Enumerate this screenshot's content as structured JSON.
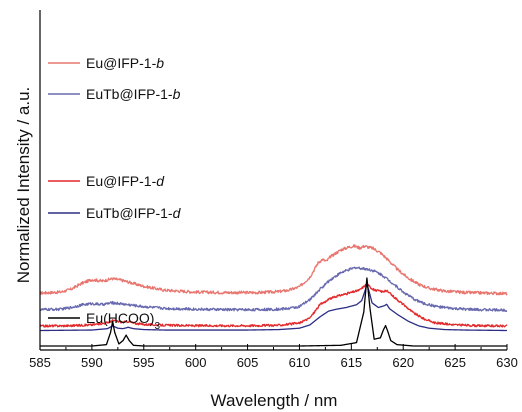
{
  "chart_data": {
    "type": "line",
    "title": "",
    "xlabel": "Wavelength / nm",
    "ylabel": "Normalized Intensity / a.u.",
    "xlim": [
      585,
      630
    ],
    "x_ticks": [
      585,
      590,
      595,
      600,
      605,
      610,
      615,
      620,
      625,
      630
    ],
    "y_tick_labels_shown": false,
    "grid": false,
    "legend_position": "left, beside each trace",
    "series": [
      {
        "name": "Eu@IFP-1-b",
        "name_parts": [
          "Eu@IFP-1-",
          "b"
        ],
        "color": "#e8766f",
        "offset": 5.2,
        "scale": 4.8,
        "noise": 0.03,
        "x": [
          585,
          587,
          588,
          589,
          590,
          591,
          592,
          593,
          594,
          595,
          597,
          600,
          603,
          606,
          608,
          609,
          610,
          611,
          611.8,
          612.2,
          612.6,
          613,
          614,
          614.8,
          615.3,
          615.8,
          616.3,
          616.7,
          617.1,
          617.8,
          618.5,
          619.5,
          620.5,
          621.5,
          622.5,
          624,
          626,
          628,
          630
        ],
        "values": [
          0.02,
          0.04,
          0.1,
          0.22,
          0.3,
          0.27,
          0.32,
          0.28,
          0.22,
          0.16,
          0.08,
          0.04,
          0.03,
          0.03,
          0.05,
          0.08,
          0.15,
          0.35,
          0.65,
          0.72,
          0.68,
          0.78,
          0.92,
          0.98,
          1.0,
          0.96,
          1.0,
          0.97,
          0.95,
          0.86,
          0.72,
          0.5,
          0.33,
          0.2,
          0.12,
          0.06,
          0.03,
          0.02,
          0.01
        ]
      },
      {
        "name": "EuTb@IFP-1-b",
        "name_parts": [
          "EuTb@IFP-1-",
          "b"
        ],
        "color": "#6869ae",
        "offset": 3.55,
        "scale": 4.3,
        "noise": 0.03,
        "x": [
          585,
          587,
          588,
          589,
          590,
          591,
          592,
          593,
          594,
          595,
          597,
          600,
          603,
          606,
          608,
          609,
          610,
          611,
          612,
          613,
          614,
          614.8,
          615.4,
          616,
          616.6,
          617.2,
          618,
          619,
          620,
          621,
          622,
          623.5,
          625,
          627,
          630
        ],
        "values": [
          0.02,
          0.03,
          0.07,
          0.13,
          0.16,
          0.14,
          0.18,
          0.15,
          0.12,
          0.09,
          0.05,
          0.03,
          0.02,
          0.02,
          0.03,
          0.05,
          0.09,
          0.25,
          0.5,
          0.72,
          0.88,
          0.95,
          1.0,
          0.98,
          0.96,
          0.92,
          0.82,
          0.63,
          0.43,
          0.27,
          0.16,
          0.08,
          0.04,
          0.02,
          0.01
        ]
      },
      {
        "name": "Eu@IFP-1-d",
        "name_parts": [
          "Eu@IFP-1-",
          "d"
        ],
        "color": "#e22a2c",
        "offset": 1.95,
        "scale": 4.25,
        "noise": 0.025,
        "x": [
          585,
          588,
          590,
          591.5,
          592,
          592.5,
          593,
          593.5,
          594,
          595,
          597,
          600,
          605,
          608,
          610,
          611,
          612,
          612.6,
          613,
          614,
          615,
          615.8,
          616.2,
          616.5,
          616.8,
          617.2,
          618,
          618.4,
          619,
          620,
          621,
          622,
          623,
          625,
          627,
          630
        ],
        "values": [
          0.01,
          0.02,
          0.04,
          0.09,
          0.14,
          0.12,
          0.1,
          0.12,
          0.08,
          0.05,
          0.03,
          0.02,
          0.02,
          0.03,
          0.08,
          0.2,
          0.52,
          0.6,
          0.66,
          0.74,
          0.8,
          0.86,
          0.94,
          1.0,
          0.93,
          0.86,
          0.82,
          0.84,
          0.72,
          0.52,
          0.32,
          0.18,
          0.09,
          0.04,
          0.02,
          0.01
        ]
      },
      {
        "name": "EuTb@IFP-1-d",
        "name_parts": [
          "EuTb@IFP-1-",
          "d"
        ],
        "color": "#2b2e84",
        "offset": 1.55,
        "scale": 4.6,
        "noise": 0.0,
        "x": [
          585,
          590,
          591.5,
          592,
          592.5,
          593,
          593.5,
          594,
          595,
          597,
          600,
          605,
          608,
          610,
          611,
          612,
          612.8,
          613.5,
          614.5,
          615.5,
          616,
          616.3,
          616.5,
          616.7,
          617,
          617.6,
          618.2,
          618.4,
          618.7,
          619.5,
          620.5,
          621.5,
          622.5,
          624,
          626,
          630
        ],
        "values": [
          0.0,
          0.01,
          0.04,
          0.1,
          0.05,
          0.04,
          0.07,
          0.04,
          0.02,
          0.01,
          0.01,
          0.01,
          0.02,
          0.05,
          0.12,
          0.3,
          0.42,
          0.46,
          0.5,
          0.56,
          0.65,
          0.85,
          1.0,
          0.86,
          0.6,
          0.5,
          0.54,
          0.57,
          0.47,
          0.34,
          0.2,
          0.1,
          0.05,
          0.02,
          0.01,
          0.0
        ]
      },
      {
        "name": "Eu(HCOO)3",
        "name_parts": [
          "Eu(HCOO)",
          "3"
        ],
        "color": "#000000",
        "offset": 0,
        "scale": 6.8,
        "noise": 0.0,
        "x": [
          585,
          590,
          591.4,
          591.8,
          592,
          592.2,
          592.6,
          593,
          593.3,
          593.6,
          594,
          595,
          600,
          605,
          610,
          614,
          615.5,
          616.2,
          616.5,
          616.8,
          617.2,
          617.8,
          618.1,
          618.3,
          618.5,
          618.8,
          619.4,
          621,
          625,
          630
        ],
        "values": [
          0.0,
          0.0,
          0.02,
          0.2,
          0.36,
          0.2,
          0.03,
          0.08,
          0.16,
          0.08,
          0.01,
          0.0,
          0.0,
          0.0,
          0.0,
          0.01,
          0.05,
          0.5,
          1.0,
          0.55,
          0.1,
          0.12,
          0.24,
          0.3,
          0.22,
          0.08,
          0.02,
          0.0,
          0.0,
          0.0
        ]
      }
    ]
  }
}
